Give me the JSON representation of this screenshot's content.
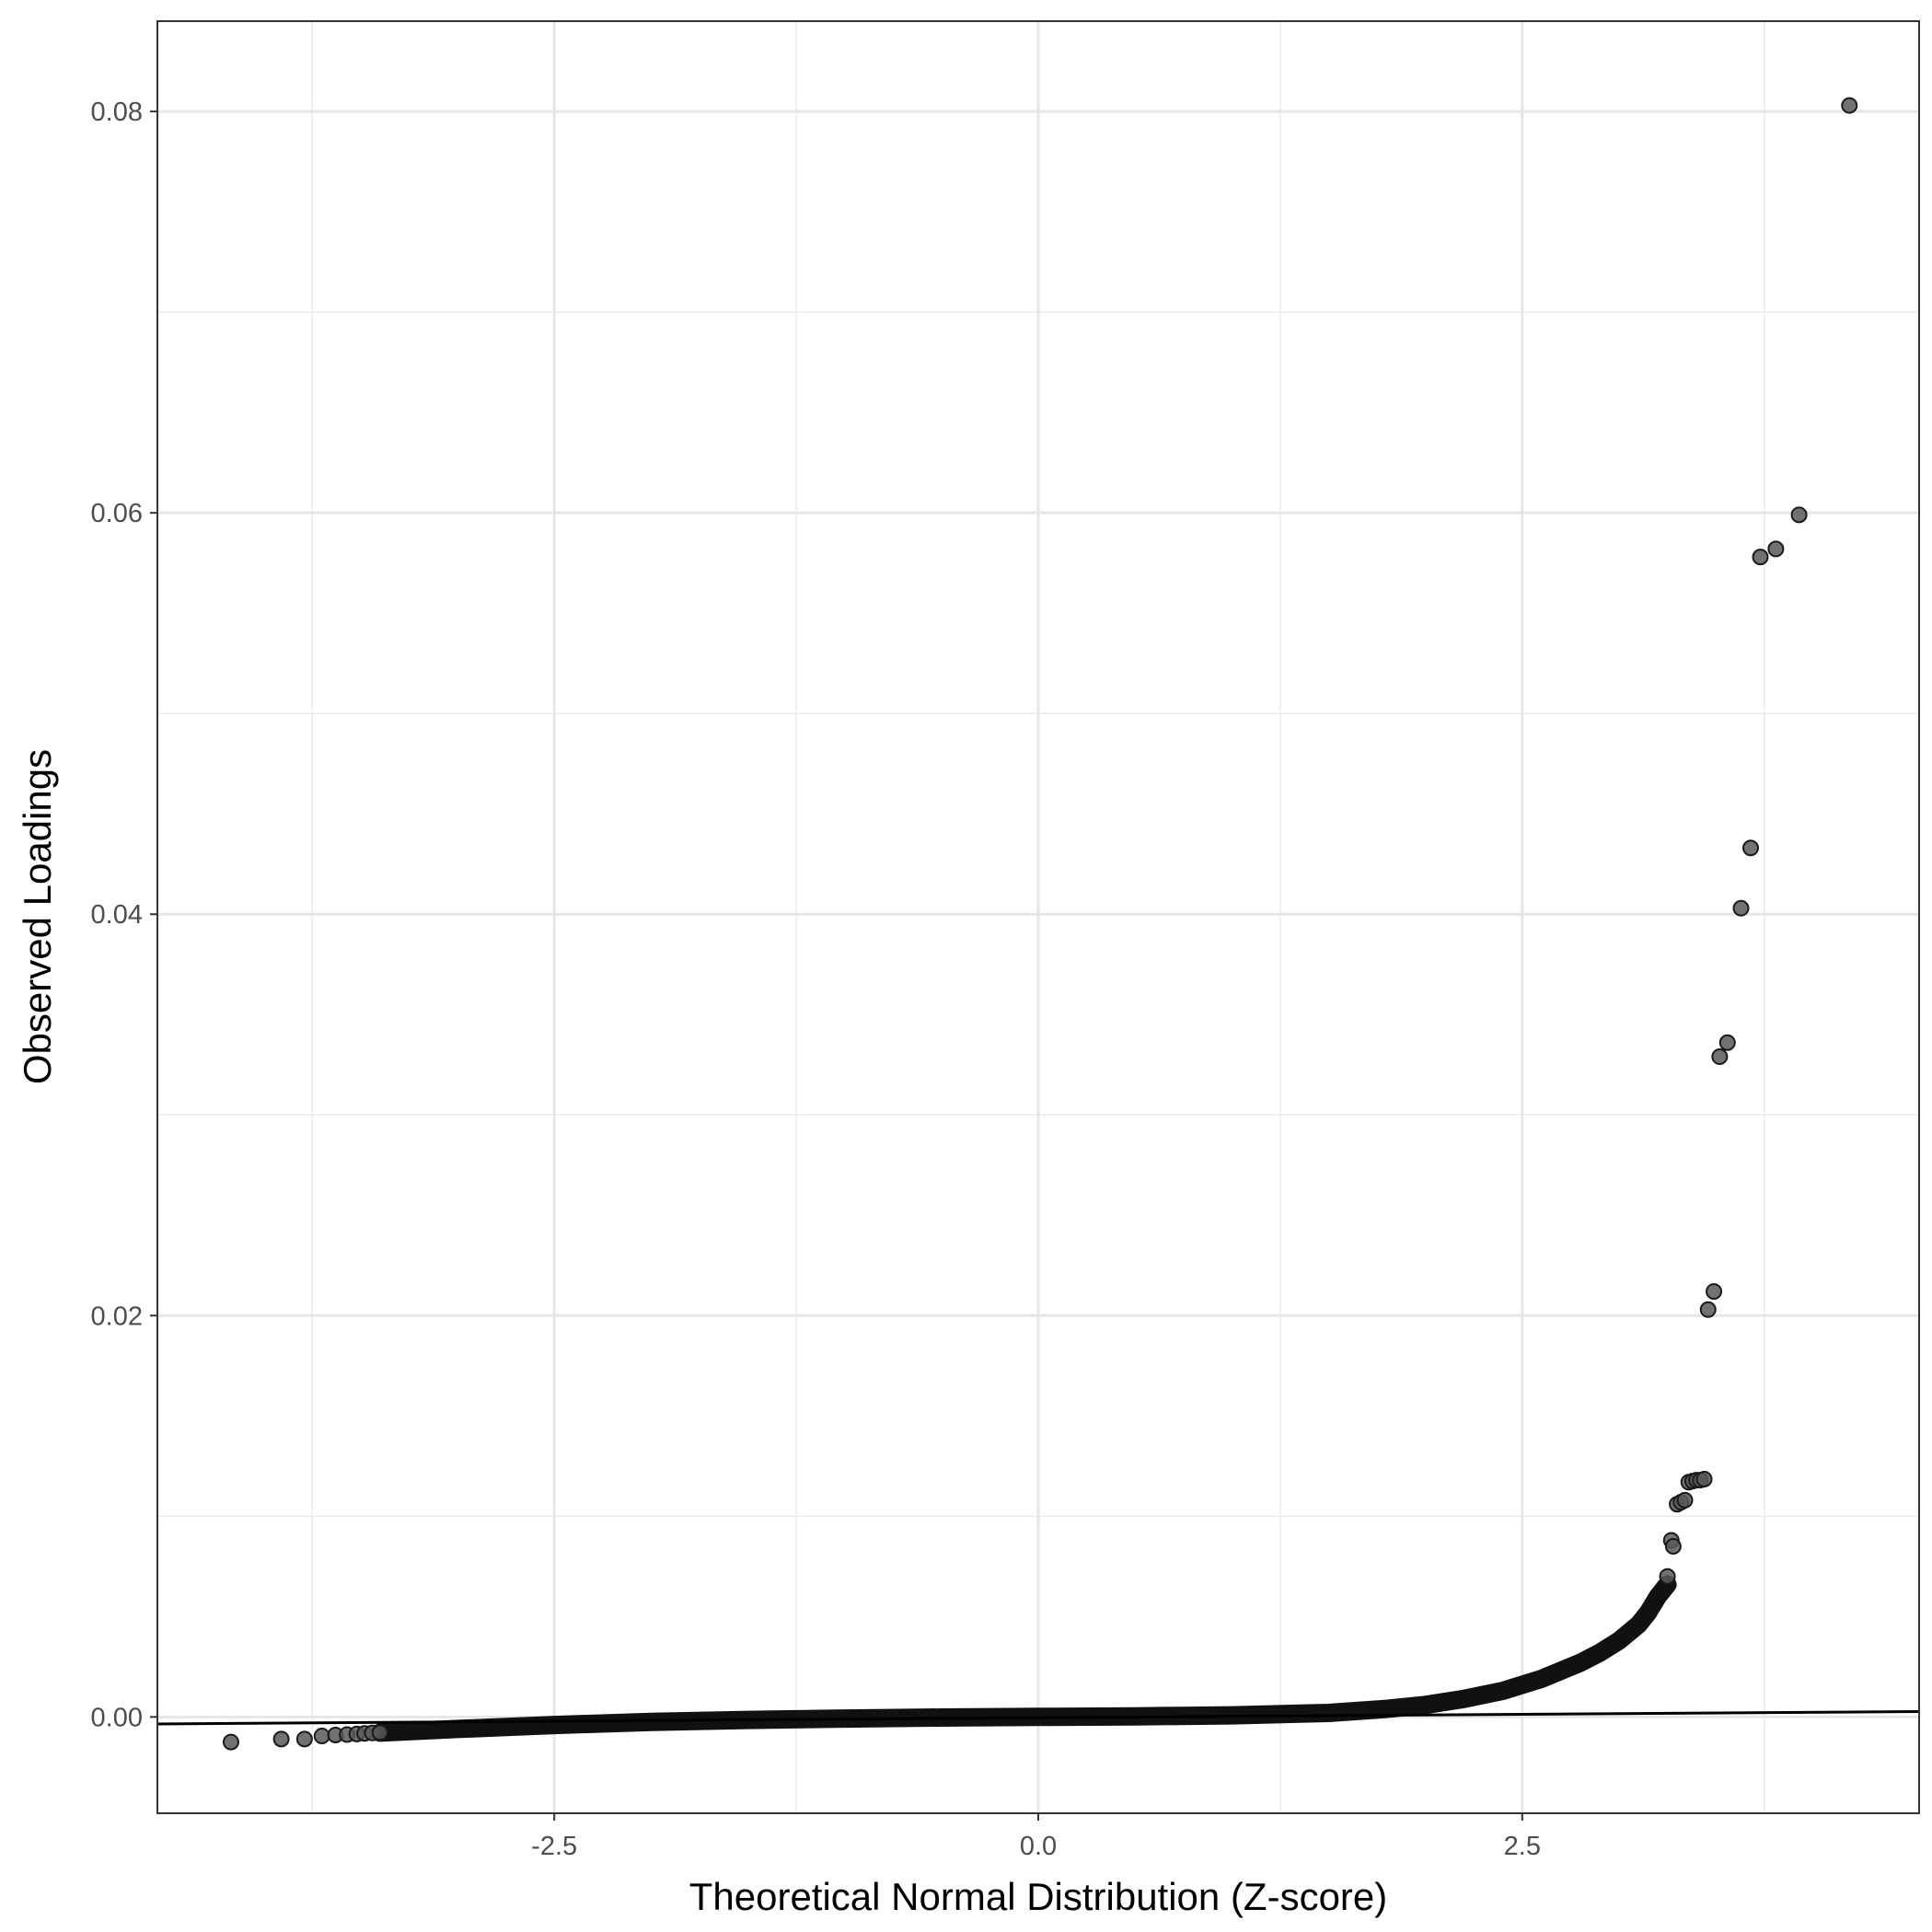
{
  "chart_data": {
    "type": "scatter",
    "title": "",
    "xlabel": "Theoretical Normal Distribution (Z-score)",
    "ylabel": "Observed Loadings",
    "xlim": [
      -4.55,
      4.55
    ],
    "ylim": [
      -0.0048,
      0.0845
    ],
    "x_ticks": [
      {
        "value": -2.5,
        "label": "-2.5"
      },
      {
        "value": 0.0,
        "label": "0.0"
      },
      {
        "value": 2.5,
        "label": "2.5"
      }
    ],
    "x_minor_ticks": [
      -3.75,
      -1.25,
      1.25,
      3.75
    ],
    "y_ticks": [
      {
        "value": 0.0,
        "label": "0.00"
      },
      {
        "value": 0.02,
        "label": "0.02"
      },
      {
        "value": 0.04,
        "label": "0.04"
      },
      {
        "value": 0.06,
        "label": "0.06"
      },
      {
        "value": 0.08,
        "label": "0.08"
      }
    ],
    "y_minor_ticks": [
      0.01,
      0.03,
      0.05,
      0.07
    ],
    "grid": true,
    "legend": "none",
    "reference_line": {
      "x": [
        -4.55,
        4.55
      ],
      "y": [
        -0.00035,
        0.00027
      ]
    },
    "points": [
      {
        "x": -4.17,
        "y": -0.00125
      },
      {
        "x": -3.91,
        "y": -0.0011
      },
      {
        "x": -3.79,
        "y": -0.0011
      },
      {
        "x": -3.7,
        "y": -0.00095
      },
      {
        "x": -3.63,
        "y": -0.0009
      },
      {
        "x": -3.57,
        "y": -0.00088
      },
      {
        "x": -3.52,
        "y": -0.00085
      },
      {
        "x": -3.48,
        "y": -0.00082
      },
      {
        "x": -3.44,
        "y": -0.0008
      },
      {
        "x": -3.4,
        "y": -0.00078
      },
      {
        "x": 3.25,
        "y": 0.007
      },
      {
        "x": 3.27,
        "y": 0.0088
      },
      {
        "x": 3.28,
        "y": 0.0085
      },
      {
        "x": 3.3,
        "y": 0.0106
      },
      {
        "x": 3.32,
        "y": 0.0107
      },
      {
        "x": 3.34,
        "y": 0.0108
      },
      {
        "x": 3.36,
        "y": 0.0117
      },
      {
        "x": 3.38,
        "y": 0.01175
      },
      {
        "x": 3.4,
        "y": 0.0118
      },
      {
        "x": 3.42,
        "y": 0.0118
      },
      {
        "x": 3.44,
        "y": 0.01185
      },
      {
        "x": 3.46,
        "y": 0.0203
      },
      {
        "x": 3.49,
        "y": 0.0212
      },
      {
        "x": 3.52,
        "y": 0.0329
      },
      {
        "x": 3.56,
        "y": 0.0336
      },
      {
        "x": 3.63,
        "y": 0.0403
      },
      {
        "x": 3.68,
        "y": 0.0433
      },
      {
        "x": 3.73,
        "y": 0.0578
      },
      {
        "x": 3.81,
        "y": 0.0582
      },
      {
        "x": 3.93,
        "y": 0.0599
      },
      {
        "x": 4.19,
        "y": 0.0803
      }
    ],
    "dense_curve": [
      {
        "x": -3.4,
        "y": -0.00078
      },
      {
        "x": -3.0,
        "y": -0.0006
      },
      {
        "x": -2.5,
        "y": -0.0004
      },
      {
        "x": -2.0,
        "y": -0.00025
      },
      {
        "x": -1.5,
        "y": -0.00015
      },
      {
        "x": -1.0,
        "y": -8e-05
      },
      {
        "x": -0.5,
        "y": -3e-05
      },
      {
        "x": 0.0,
        "y": 0.0
      },
      {
        "x": 0.5,
        "y": 3e-05
      },
      {
        "x": 1.0,
        "y": 8e-05
      },
      {
        "x": 1.5,
        "y": 0.0002
      },
      {
        "x": 1.8,
        "y": 0.0004
      },
      {
        "x": 2.0,
        "y": 0.0006
      },
      {
        "x": 2.2,
        "y": 0.0009
      },
      {
        "x": 2.4,
        "y": 0.0013
      },
      {
        "x": 2.6,
        "y": 0.0019
      },
      {
        "x": 2.8,
        "y": 0.0027
      },
      {
        "x": 2.9,
        "y": 0.0032
      },
      {
        "x": 3.0,
        "y": 0.0038
      },
      {
        "x": 3.1,
        "y": 0.0046
      },
      {
        "x": 3.15,
        "y": 0.0052
      },
      {
        "x": 3.2,
        "y": 0.006
      },
      {
        "x": 3.25,
        "y": 0.0066
      }
    ],
    "point_color": "#595959",
    "point_stroke": "#1a1a1a",
    "line_color": "#000000"
  }
}
